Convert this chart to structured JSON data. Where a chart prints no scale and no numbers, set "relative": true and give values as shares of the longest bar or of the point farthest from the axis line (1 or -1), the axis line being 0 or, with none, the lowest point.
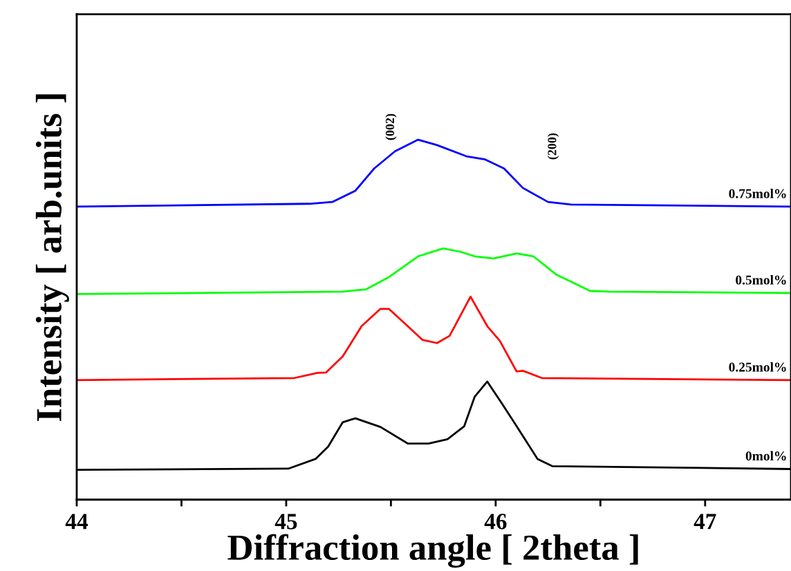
{
  "chart_data": {
    "type": "line",
    "relative": true,
    "xlabel": "Diffraction angle [ 2theta ]",
    "ylabel": "Intensity [ arb.units ]",
    "xlim": [
      44,
      47.41
    ],
    "xticks": [
      44,
      {
        "value": 44.5,
        "label": null
      },
      45,
      {
        "value": 45.5,
        "label": null
      },
      46,
      {
        "value": 46.5,
        "label": null
      },
      47
    ],
    "tick_labels": "x",
    "grid": false,
    "series": [
      {
        "name": "0.75mol%",
        "color": "#0000ff",
        "x": [
          44.0,
          45.11,
          45.22,
          45.33,
          45.42,
          45.52,
          45.63,
          45.72,
          45.86,
          45.95,
          46.04,
          46.13,
          46.25,
          46.36,
          47.41
        ],
        "values": [
          0.814,
          0.822,
          0.827,
          0.858,
          0.92,
          0.968,
          1.0,
          0.985,
          0.954,
          0.945,
          0.92,
          0.866,
          0.827,
          0.82,
          0.814
        ]
      },
      {
        "name": "0.5mol%",
        "color": "#00ff00",
        "x": [
          44.0,
          45.27,
          45.38,
          45.49,
          45.63,
          45.75,
          45.83,
          45.9,
          45.99,
          46.1,
          46.18,
          46.29,
          46.45,
          46.54,
          47.41
        ],
        "values": [
          0.571,
          0.578,
          0.584,
          0.618,
          0.676,
          0.698,
          0.689,
          0.676,
          0.67,
          0.684,
          0.676,
          0.625,
          0.58,
          0.578,
          0.574
        ]
      },
      {
        "name": "0.25mol%",
        "color": "#ff0000",
        "x": [
          44.0,
          45.04,
          45.15,
          45.19,
          45.27,
          45.36,
          45.45,
          45.49,
          45.58,
          45.65,
          45.72,
          45.78,
          45.88,
          45.96,
          46.02,
          46.1,
          46.13,
          46.22,
          47.41
        ],
        "values": [
          0.332,
          0.338,
          0.352,
          0.353,
          0.398,
          0.482,
          0.53,
          0.53,
          0.482,
          0.444,
          0.435,
          0.455,
          0.564,
          0.482,
          0.441,
          0.356,
          0.358,
          0.338,
          0.332
        ]
      },
      {
        "name": "0mol%",
        "color": "#000000",
        "x": [
          44.0,
          45.01,
          45.14,
          45.2,
          45.27,
          45.33,
          45.45,
          45.58,
          45.68,
          45.77,
          45.85,
          45.9,
          45.96,
          46.03,
          46.1,
          46.2,
          46.27,
          47.41
        ],
        "values": [
          0.083,
          0.086,
          0.113,
          0.147,
          0.215,
          0.226,
          0.202,
          0.156,
          0.156,
          0.168,
          0.204,
          0.286,
          0.328,
          0.267,
          0.204,
          0.113,
          0.093,
          0.085
        ]
      }
    ],
    "annotations": [
      "(002)",
      "(200)"
    ]
  }
}
